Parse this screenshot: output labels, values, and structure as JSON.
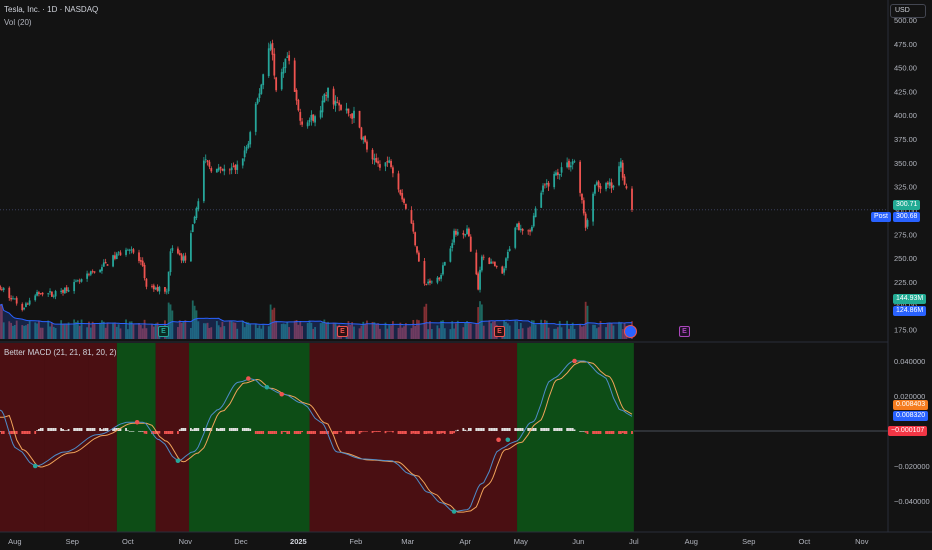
{
  "header": {
    "title": "Tesla, Inc. · 1D · NASDAQ",
    "volume_label": "Vol (20)",
    "macd_label": "Better MACD (21, 21, 81, 20, 2)",
    "currency_button": "USD",
    "post_label": "Post"
  },
  "price_tags": {
    "last_price": "300.71",
    "post_price": "300.68",
    "volume_1": "144.93M",
    "volume_2": "124.86M",
    "macd_1": "0.008403",
    "macd_2": "0.008320",
    "macd_hist": "−0.000107"
  },
  "earnings_marker": "E",
  "colors": {
    "background": "#131313",
    "up": "#26a69a",
    "down": "#ef5350",
    "volume_ma": "#2962ff",
    "bull_zone": "#0d4d16",
    "bear_zone": "#4a0f12",
    "macd_line": "#4f8cc9",
    "signal_line": "#f0a35a"
  },
  "chart_data": [
    {
      "type": "candlestick",
      "title": "Tesla, Inc. · 1D · NASDAQ",
      "ylabel": "USD",
      "ylim": [
        165,
        500
      ],
      "x_ticks": [
        "Aug",
        "Sep",
        "Oct",
        "Nov",
        "Dec",
        "2025",
        "Feb",
        "Mar",
        "Apr",
        "May",
        "Jun",
        "Jul",
        "Aug",
        "Sep",
        "Oct",
        "Nov"
      ],
      "y_ticks": [
        "500.00",
        "475.00",
        "450.00",
        "425.00",
        "400.00",
        "375.00",
        "350.00",
        "325.00",
        "300.00",
        "275.00",
        "250.00",
        "225.00",
        "200.00",
        "175.00"
      ],
      "close_anchors": [
        [
          "2024-07-24",
          220
        ],
        [
          "2024-08-05",
          198
        ],
        [
          "2024-08-15",
          215
        ],
        [
          "2024-08-22",
          212
        ],
        [
          "2024-09-05",
          225
        ],
        [
          "2024-09-20",
          245
        ],
        [
          "2024-10-01",
          262
        ],
        [
          "2024-10-09",
          242
        ],
        [
          "2024-10-11",
          218
        ],
        [
          "2024-10-22",
          217
        ],
        [
          "2024-10-24",
          260
        ],
        [
          "2024-11-01",
          248
        ],
        [
          "2024-11-06",
          290
        ],
        [
          "2024-11-11",
          350
        ],
        [
          "2024-11-20",
          340
        ],
        [
          "2024-11-29",
          345
        ],
        [
          "2024-12-05",
          370
        ],
        [
          "2024-12-11",
          425
        ],
        [
          "2024-12-17",
          480
        ],
        [
          "2024-12-20",
          420
        ],
        [
          "2024-12-26",
          460
        ],
        [
          "2025-01-02",
          395
        ],
        [
          "2025-01-10",
          395
        ],
        [
          "2025-01-17",
          425
        ],
        [
          "2025-01-24",
          405
        ],
        [
          "2025-01-31",
          400
        ],
        [
          "2025-02-10",
          350
        ],
        [
          "2025-02-20",
          350
        ],
        [
          "2025-03-03",
          285
        ],
        [
          "2025-03-10",
          222
        ],
        [
          "2025-03-18",
          230
        ],
        [
          "2025-03-26",
          275
        ],
        [
          "2025-04-02",
          280
        ],
        [
          "2025-04-08",
          220
        ],
        [
          "2025-04-10",
          255
        ],
        [
          "2025-04-21",
          232
        ],
        [
          "2025-04-28",
          285
        ],
        [
          "2025-05-06",
          280
        ],
        [
          "2025-05-12",
          320
        ],
        [
          "2025-05-23",
          345
        ],
        [
          "2025-05-30",
          352
        ],
        [
          "2025-06-05",
          285
        ],
        [
          "2025-06-10",
          325
        ],
        [
          "2025-06-20",
          325
        ],
        [
          "2025-06-24",
          348
        ],
        [
          "2025-06-27",
          322
        ],
        [
          "2025-06-30",
          300.71
        ]
      ],
      "last_price": 300.71
    },
    {
      "type": "bar",
      "title": "Vol (20)",
      "volume_ma_current": "124.86M",
      "volume_current": "144.93M",
      "spike_dates": [
        "2024-07-24",
        "2024-10-24",
        "2024-11-06",
        "2024-12-18",
        "2025-03-10",
        "2025-04-09",
        "2025-06-06"
      ]
    },
    {
      "type": "line",
      "title": "Better MACD (21, 21, 81, 20, 2)",
      "ylim": [
        -0.05,
        0.05
      ],
      "y_ticks": [
        "0.040000",
        "0.020000",
        "−0.020000",
        "−0.040000"
      ],
      "macd_anchors": [
        [
          "2024-07-24",
          0.012
        ],
        [
          "2024-08-02",
          -0.01
        ],
        [
          "2024-08-12",
          -0.02
        ],
        [
          "2024-08-28",
          -0.012
        ],
        [
          "2024-09-15",
          -0.002
        ],
        [
          "2024-10-01",
          0.005
        ],
        [
          "2024-10-09",
          0.005
        ],
        [
          "2024-10-18",
          -0.005
        ],
        [
          "2024-10-28",
          -0.017
        ],
        [
          "2024-11-05",
          -0.012
        ],
        [
          "2024-11-18",
          0.012
        ],
        [
          "2024-11-30",
          0.028
        ],
        [
          "2024-12-07",
          0.03
        ],
        [
          "2024-12-14",
          0.025
        ],
        [
          "2024-12-24",
          0.021
        ],
        [
          "2025-01-03",
          0.016
        ],
        [
          "2025-01-13",
          0.005
        ],
        [
          "2025-01-22",
          -0.012
        ],
        [
          "2025-02-05",
          -0.016
        ],
        [
          "2025-02-20",
          -0.017
        ],
        [
          "2025-03-03",
          -0.025
        ],
        [
          "2025-03-12",
          -0.035
        ],
        [
          "2025-03-19",
          -0.041
        ],
        [
          "2025-03-26",
          -0.046
        ],
        [
          "2025-04-02",
          -0.045
        ],
        [
          "2025-04-10",
          -0.03
        ],
        [
          "2025-04-20",
          -0.01
        ],
        [
          "2025-04-28",
          -0.006
        ],
        [
          "2025-05-07",
          0.005
        ],
        [
          "2025-05-18",
          0.03
        ],
        [
          "2025-05-30",
          0.04
        ],
        [
          "2025-06-04",
          0.04
        ],
        [
          "2025-06-14",
          0.032
        ],
        [
          "2025-06-24",
          0.012
        ],
        [
          "2025-06-30",
          0.0084
        ]
      ],
      "zones": [
        [
          "2024-07-24",
          "2024-08-17",
          "bear"
        ],
        [
          "2024-08-17",
          "2024-09-10",
          "bear"
        ],
        [
          "2024-09-25",
          "2024-10-16",
          "bull"
        ],
        [
          "2024-10-16",
          "2024-11-03",
          "bear"
        ],
        [
          "2024-11-03",
          "2025-01-07",
          "bull"
        ],
        [
          "2025-01-07",
          "2025-04-29",
          "bear"
        ],
        [
          "2025-04-29",
          "2025-07-01",
          "bull"
        ]
      ],
      "markers": [
        [
          "2024-08-12",
          -0.02,
          "up"
        ],
        [
          "2024-10-06",
          0.005,
          "down"
        ],
        [
          "2024-10-28",
          -0.017,
          "up"
        ],
        [
          "2024-12-05",
          0.03,
          "down"
        ],
        [
          "2024-12-15",
          0.025,
          "up"
        ],
        [
          "2024-12-23",
          0.021,
          "down"
        ],
        [
          "2025-03-26",
          -0.046,
          "up"
        ],
        [
          "2025-04-19",
          -0.005,
          "down"
        ],
        [
          "2025-04-24",
          -0.005,
          "up"
        ],
        [
          "2025-05-30",
          0.04,
          "down"
        ]
      ]
    }
  ]
}
